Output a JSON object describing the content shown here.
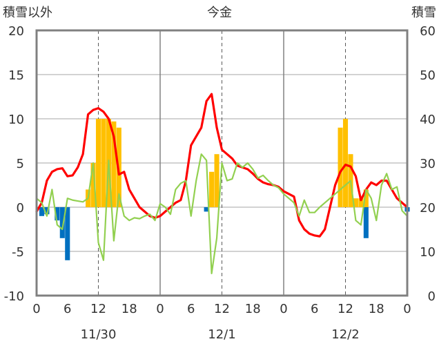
{
  "chart_data": {
    "type": "bar+line",
    "title": "今金",
    "left_axis_title": "積雪以外",
    "right_axis_title": "積雪",
    "left_ylim": [
      -10,
      20
    ],
    "left_yticks": [
      "20",
      "15",
      "10",
      "5",
      "0",
      "-5",
      "-10"
    ],
    "right_ylim": [
      0,
      60
    ],
    "right_yticks": [
      "60",
      "50",
      "40",
      "30",
      "20",
      "10",
      "0"
    ],
    "x_tick_labels": [
      "0",
      "6",
      "12",
      "18",
      "0",
      "6",
      "12",
      "18",
      "0",
      "6",
      "12",
      "18",
      "0"
    ],
    "date_labels": [
      "11/30",
      "12/1",
      "12/2"
    ],
    "x_hours_range": [
      0,
      72
    ],
    "colors": {
      "temperature": "#ff0000",
      "dew_point": "#92d050",
      "snow_bars": "#ffc000",
      "negative_bars": "#0070c0",
      "baseline": "#7030a0",
      "frame": "#808080"
    },
    "series": [
      {
        "kind": "line",
        "axis": "left",
        "color": "#ff0000",
        "values": [
          -0.5,
          0.5,
          3,
          4,
          4.3,
          4.4,
          3.5,
          3.6,
          4.5,
          6,
          10.5,
          11,
          11.2,
          10.8,
          10,
          8,
          3.7,
          4,
          2,
          1,
          0,
          -0.5,
          -1,
          -1.2,
          -1,
          -0.5,
          0,
          0.5,
          0.8,
          3,
          7,
          8,
          9,
          12,
          12.8,
          9,
          6.5,
          6,
          5.5,
          4.7,
          4.5,
          4.3,
          3.8,
          3.2,
          2.8,
          2.6,
          2.5,
          2.3,
          1.8,
          1.5,
          1.2,
          -1.5,
          -2.5,
          -3,
          -3.2,
          -3.3,
          -2.5,
          0,
          2.5,
          4,
          4.8,
          4.6,
          3.5,
          0.8,
          2,
          2.8,
          2.5,
          3,
          3,
          2,
          1,
          0.5,
          0
        ]
      },
      {
        "kind": "line",
        "axis": "left",
        "color": "#92d050",
        "values": [
          1,
          0.5,
          -1,
          2,
          -2,
          -2.5,
          1,
          0.8,
          0.7,
          0.6,
          1,
          5,
          -4,
          -6,
          5.3,
          -3.8,
          1.5,
          -1,
          -1.5,
          -1.2,
          -1.3,
          -1,
          -0.8,
          -1.5,
          0.4,
          0,
          -0.8,
          2,
          2.7,
          3,
          -1,
          3,
          6,
          5.3,
          -7.5,
          -3.5,
          5,
          3,
          3.2,
          5,
          4.5,
          5,
          4.3,
          3.3,
          3.6,
          3,
          2.5,
          2.2,
          1.5,
          1,
          0.5,
          -1,
          0.8,
          -0.6,
          -0.6,
          0,
          0.5,
          1,
          1.5,
          2,
          2.5,
          3,
          -1.5,
          -2,
          2,
          1,
          -1.5,
          2.5,
          3.8,
          2,
          2.3,
          -0.4,
          -1
        ]
      },
      {
        "kind": "bar",
        "axis": "left",
        "color": "#ffc000",
        "values": [
          0,
          0,
          0,
          0,
          0,
          0,
          0,
          0,
          0,
          0,
          2,
          5,
          10,
          10,
          10,
          9.7,
          9,
          0,
          0,
          0,
          0,
          0,
          0,
          0,
          0,
          0,
          0,
          0,
          0,
          0,
          0,
          0,
          0,
          0,
          4,
          6,
          0,
          0,
          0,
          0,
          0,
          0,
          0,
          0,
          0,
          0,
          0,
          0,
          0,
          0,
          0,
          0,
          0,
          0,
          0,
          0,
          0,
          0,
          0,
          9,
          10,
          6,
          1,
          1,
          2,
          0,
          0,
          0,
          0,
          0,
          0,
          0,
          0
        ]
      },
      {
        "kind": "bar",
        "axis": "left",
        "color": "#0070c0",
        "values": [
          0,
          -1,
          -0.8,
          0,
          -1.5,
          -3.5,
          -6,
          0,
          0,
          0,
          0,
          0,
          0,
          0,
          0,
          0,
          0,
          0,
          0,
          0,
          0,
          0,
          0,
          0,
          0,
          0,
          0,
          0,
          0,
          0,
          0,
          0,
          0,
          -0.5,
          0,
          0,
          0,
          0,
          0,
          0,
          0,
          0,
          0,
          0,
          0,
          0,
          0,
          0,
          0,
          0,
          0,
          0,
          0,
          0,
          0,
          0,
          0,
          0,
          0,
          0,
          0,
          0,
          0,
          0,
          -3.5,
          0,
          0,
          0,
          0,
          0,
          0,
          0,
          -0.5
        ]
      }
    ]
  }
}
